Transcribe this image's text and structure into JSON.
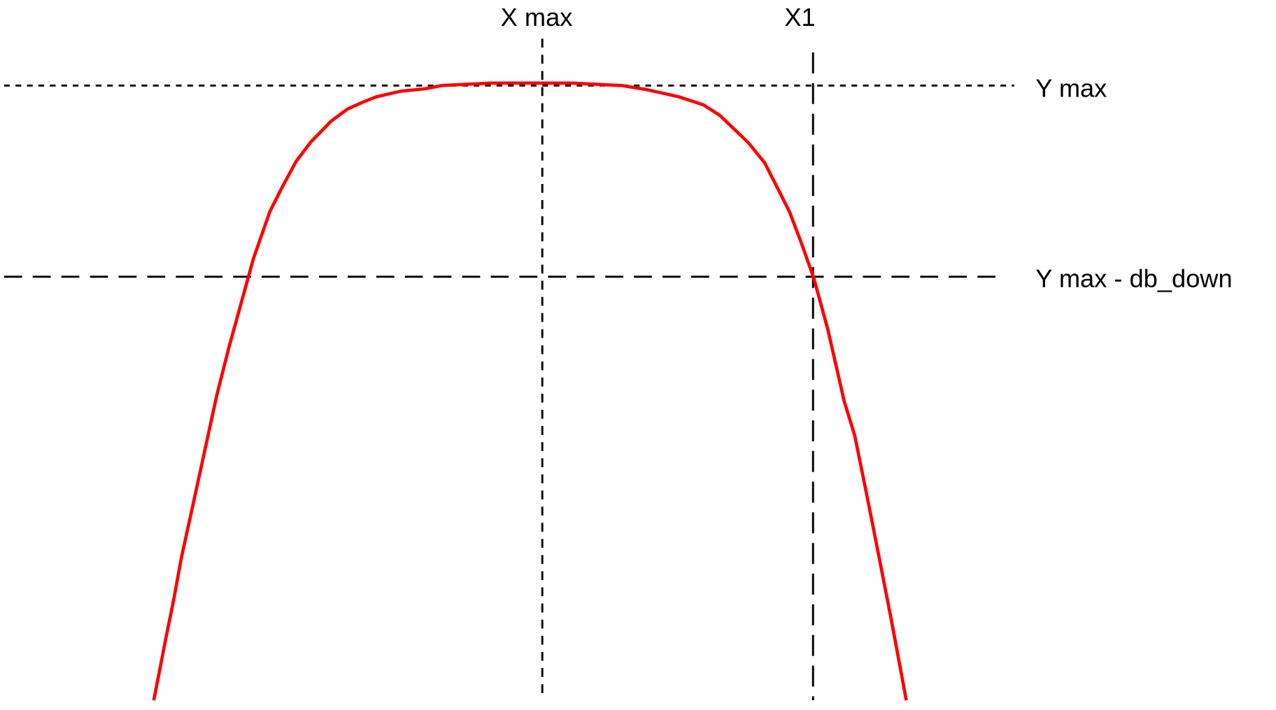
{
  "chart_data": {
    "type": "line",
    "title": "",
    "xlabel": "",
    "ylabel": "",
    "grid": false,
    "series": [
      {
        "color": "#ff0000"
      }
    ],
    "annotations": {
      "x_max": "X max",
      "x1": "X1",
      "y_max": "Y max",
      "y_max_db_down": "Y max - db_down"
    },
    "reference_line_color": "#000000"
  }
}
